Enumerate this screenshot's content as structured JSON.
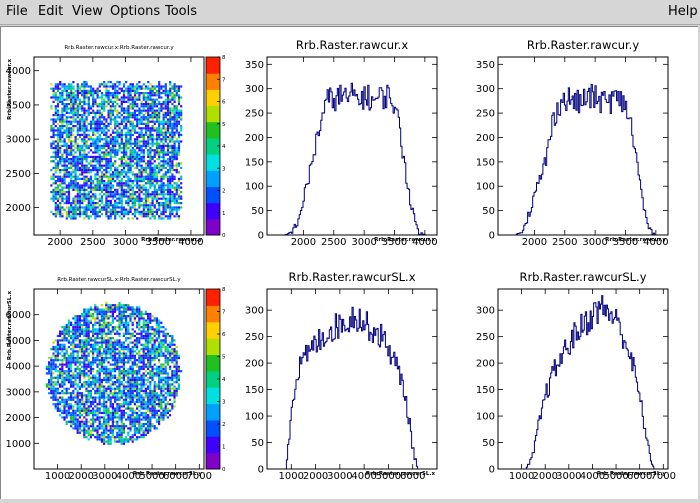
{
  "menu": {
    "file": "File",
    "edit": "Edit",
    "view": "View",
    "options": "Options",
    "tools": "Tools",
    "help": "Help"
  },
  "colors": {
    "hist": "#000080",
    "palette": [
      "#7f00c8",
      "#4000ff",
      "#0050ff",
      "#00a0ff",
      "#00e0e0",
      "#00d080",
      "#20c020",
      "#b0e000",
      "#ffd000",
      "#ff8000",
      "#ff2000"
    ]
  },
  "chart_data": [
    {
      "type": "heatmap",
      "title": "Rrb.Raster.rawcur.x:Rrb.Raster.rawcur.y",
      "xlabel": "Rrb.Raster.rawcur.y",
      "ylabel": "Rrb.Raster.rawcur.x",
      "xlim": [
        1600,
        4200
      ],
      "ylim": [
        1600,
        4200
      ],
      "xticks": [
        2000,
        2500,
        3000,
        3500,
        4000
      ],
      "yticks": [
        2000,
        2500,
        3000,
        3500,
        4000
      ],
      "shape": "square",
      "region": {
        "x": [
          1850,
          3850
        ],
        "y": [
          1850,
          3850
        ]
      },
      "zlim": [
        0,
        8
      ],
      "zticks": [
        0,
        1,
        2,
        3,
        4,
        5,
        6,
        7,
        8
      ]
    },
    {
      "type": "bar",
      "title": "Rrb.Raster.rawcur.x",
      "xlabel": "Rrb.Raster.rawcur.x",
      "xlim": [
        1400,
        4200
      ],
      "ylim": [
        0,
        365
      ],
      "xticks": [
        2000,
        2500,
        3000,
        3500,
        4000
      ],
      "yticks": [
        0,
        50,
        100,
        150,
        200,
        250,
        300,
        350
      ],
      "x": [
        1700,
        1800,
        1900,
        2000,
        2100,
        2200,
        2300,
        2400,
        2500,
        2600,
        2700,
        2800,
        2900,
        3000,
        3100,
        3200,
        3300,
        3400,
        3500,
        3600,
        3700,
        3800,
        3900,
        4000
      ],
      "values": [
        0,
        5,
        25,
        70,
        125,
        185,
        240,
        275,
        280,
        285,
        280,
        285,
        280,
        285,
        280,
        275,
        285,
        285,
        270,
        205,
        120,
        45,
        5,
        0
      ]
    },
    {
      "type": "bar",
      "title": "Rrb.Raster.rawcur.y",
      "xlabel": "Rrb.Raster.rawcur.y",
      "xlim": [
        1400,
        4200
      ],
      "ylim": [
        0,
        365
      ],
      "xticks": [
        2000,
        2500,
        3000,
        3500,
        4000
      ],
      "yticks": [
        0,
        50,
        100,
        150,
        200,
        250,
        300,
        350
      ],
      "x": [
        1700,
        1800,
        1900,
        2000,
        2100,
        2200,
        2300,
        2400,
        2500,
        2600,
        2700,
        2800,
        2900,
        3000,
        3100,
        3200,
        3300,
        3400,
        3500,
        3600,
        3700,
        3800,
        3900,
        4000
      ],
      "values": [
        0,
        10,
        40,
        80,
        115,
        160,
        230,
        270,
        275,
        280,
        270,
        275,
        285,
        280,
        275,
        270,
        280,
        275,
        270,
        220,
        140,
        55,
        10,
        0
      ]
    },
    {
      "type": "heatmap",
      "title": "Rrb.Raster.rawcurSL.x:Rrb.Raster.rawcurSL.y",
      "xlabel": "Rrb.Raster.rawcurSL.y",
      "ylabel": "Rrb.Raster.rawcurSL.x",
      "xlim": [
        0,
        7200
      ],
      "ylim": [
        0,
        7000
      ],
      "xticks": [
        1000,
        2000,
        3000,
        4000,
        5000,
        6000,
        7000
      ],
      "yticks": [
        1000,
        2000,
        3000,
        4000,
        5000,
        6000
      ],
      "shape": "ellipse",
      "region": {
        "x": [
          500,
          6200
        ],
        "y": [
          1000,
          6500
        ]
      },
      "zlim": [
        0,
        8
      ],
      "zticks": [
        0,
        1,
        2,
        3,
        4,
        5,
        6,
        7,
        8
      ]
    },
    {
      "type": "bar",
      "title": "Rrb.Raster.rawcurSL.x",
      "xlabel": "Rrb.Raster.rawcurSL.x",
      "xlim": [
        0,
        7000
      ],
      "ylim": [
        0,
        340
      ],
      "xticks": [
        1000,
        2000,
        3000,
        4000,
        5000,
        6000
      ],
      "yticks": [
        0,
        50,
        100,
        150,
        200,
        250,
        300
      ],
      "x": [
        800,
        1000,
        1200,
        1400,
        1600,
        1800,
        2000,
        2200,
        2400,
        2600,
        2800,
        3000,
        3200,
        3400,
        3600,
        3800,
        4000,
        4200,
        4400,
        4600,
        4800,
        5000,
        5200,
        5400,
        5600,
        5800,
        6000,
        6200
      ],
      "values": [
        5,
        110,
        175,
        195,
        210,
        225,
        235,
        245,
        255,
        262,
        268,
        272,
        278,
        282,
        290,
        285,
        275,
        268,
        262,
        255,
        245,
        230,
        210,
        185,
        160,
        110,
        40,
        3
      ]
    },
    {
      "type": "bar",
      "title": "Rrb.Raster.rawcurSL.y",
      "xlabel": "Rrb.Raster.rawcurSL.y",
      "xlim": [
        0,
        7200
      ],
      "ylim": [
        0,
        340
      ],
      "xticks": [
        1000,
        2000,
        3000,
        4000,
        5000,
        6000,
        7000
      ],
      "yticks": [
        0,
        50,
        100,
        150,
        200,
        250,
        300
      ],
      "x": [
        1200,
        1400,
        1600,
        1800,
        2000,
        2200,
        2400,
        2600,
        2800,
        3000,
        3200,
        3400,
        3600,
        3800,
        4000,
        4200,
        4400,
        4600,
        4800,
        5000,
        5200,
        5400,
        5600,
        5800,
        6000,
        6200,
        6400,
        6600
      ],
      "values": [
        0,
        15,
        50,
        100,
        135,
        165,
        185,
        205,
        220,
        235,
        250,
        262,
        272,
        280,
        290,
        300,
        305,
        300,
        292,
        280,
        265,
        240,
        215,
        180,
        135,
        85,
        30,
        2
      ]
    }
  ]
}
